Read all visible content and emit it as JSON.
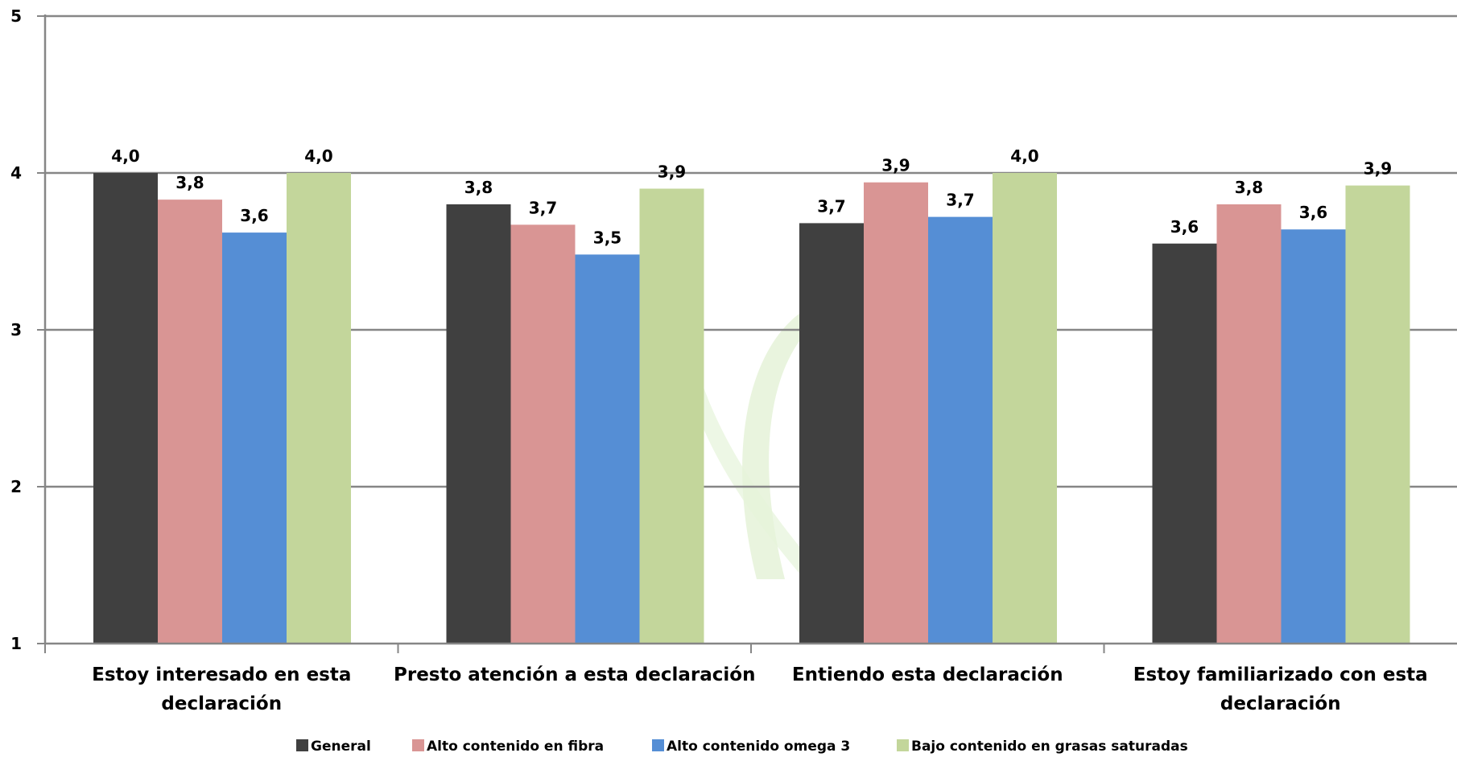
{
  "chart_data": {
    "type": "bar",
    "title": "",
    "xlabel": "",
    "ylabel": "",
    "ylim": [
      1,
      5
    ],
    "yticks": [
      "1",
      "2",
      "3",
      "4",
      "5"
    ],
    "grid": true,
    "legend_position": "bottom",
    "categories": [
      [
        "Estoy interesado en esta",
        "declaración"
      ],
      [
        "Presto atención a esta declaración"
      ],
      [
        "Entiendo esta declaración"
      ],
      [
        "Estoy familiarizado con esta",
        "declaración"
      ]
    ],
    "series": [
      {
        "name": "General",
        "color": "#404040",
        "values": [
          4.0,
          3.8,
          3.68,
          3.55
        ],
        "labels": [
          "4,0",
          "3,8",
          "3,7",
          "3,6"
        ]
      },
      {
        "name": "Alto contenido en fibra",
        "color": "#d99594",
        "values": [
          3.83,
          3.67,
          3.94,
          3.8
        ],
        "labels": [
          "3,8",
          "3,7",
          "3,9",
          "3,8"
        ]
      },
      {
        "name": "Alto contenido omega 3",
        "color": "#558ed5",
        "values": [
          3.62,
          3.48,
          3.72,
          3.64
        ],
        "labels": [
          "3,6",
          "3,5",
          "3,7",
          "3,6"
        ]
      },
      {
        "name": "Bajo contenido en grasas saturadas",
        "color": "#c3d69b",
        "values": [
          4.0,
          3.9,
          4.0,
          3.92
        ],
        "labels": [
          "4,0",
          "3,9",
          "4,0",
          "3,9"
        ]
      }
    ]
  }
}
